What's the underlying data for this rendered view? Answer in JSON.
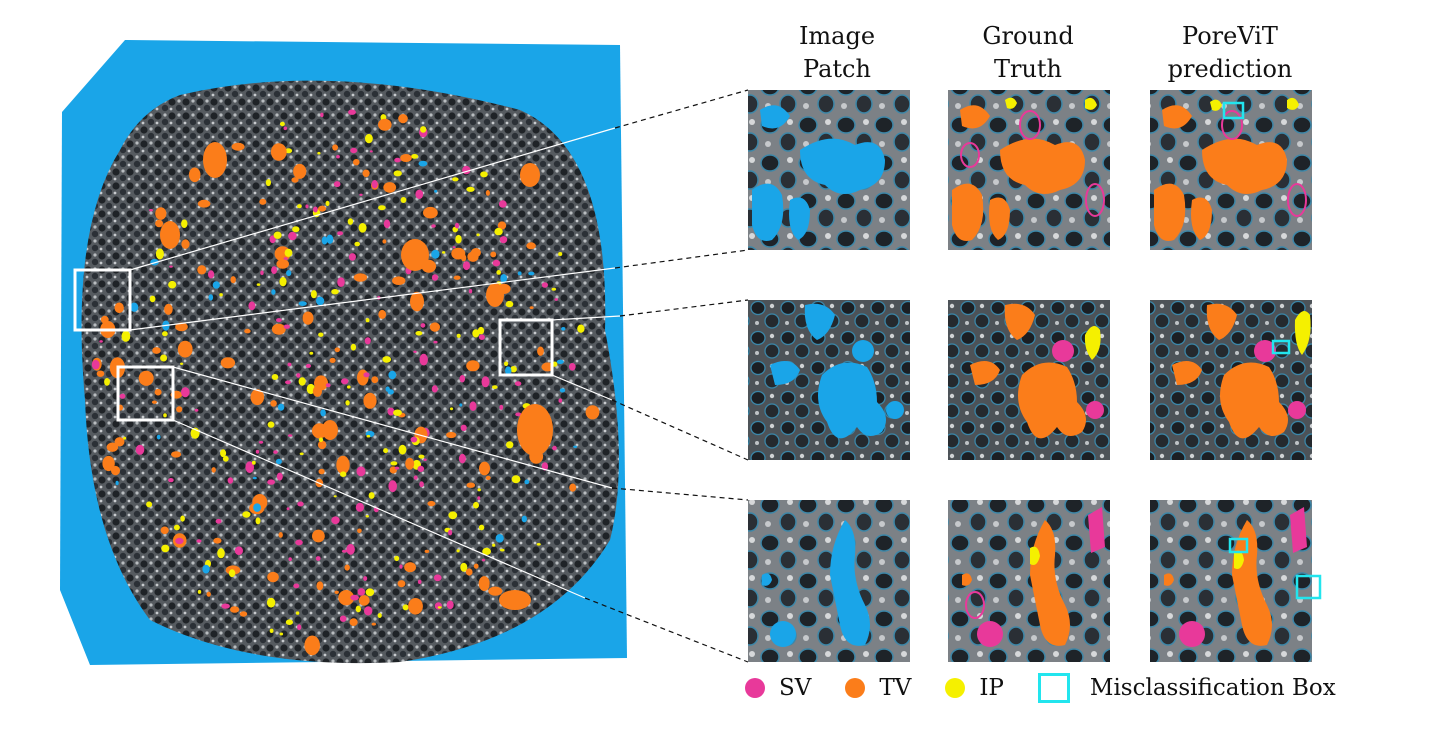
{
  "headers": {
    "image_patch": [
      "Image",
      "Patch"
    ],
    "ground_truth": [
      "Ground",
      "Truth"
    ],
    "porevit": [
      "PoreViT",
      "prediction"
    ]
  },
  "legend": {
    "sv": "SV",
    "tv": "TV",
    "ip": "IP",
    "box": "Misclassification Box"
  },
  "colors": {
    "sv": "#e8399a",
    "tv": "#fb7d1a",
    "ip": "#f5f000",
    "box": "#22e5ee",
    "sky": "#1aa5e8",
    "rock": "#2c3036"
  }
}
